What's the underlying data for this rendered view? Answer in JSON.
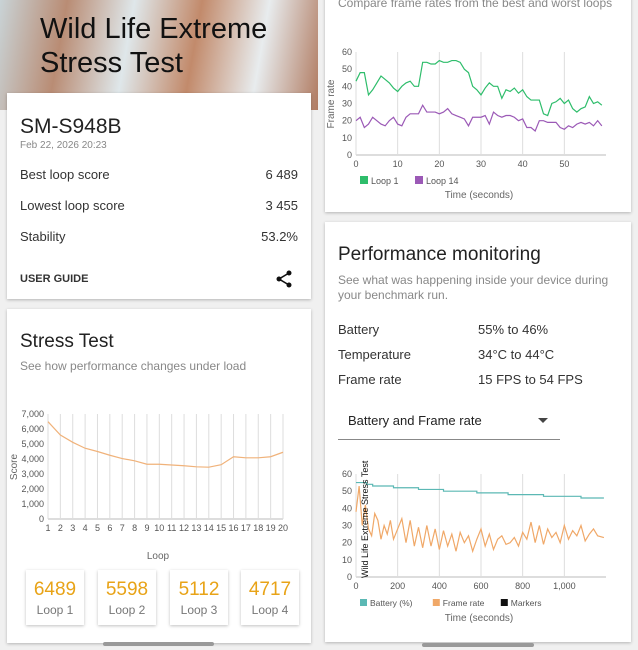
{
  "header": {
    "title": "Wild Life Extreme Stress Test"
  },
  "summary": {
    "device": "SM-S948B",
    "date": "Feb 22, 2026 20:23",
    "rows": [
      {
        "label": "Best loop score",
        "value": "6 489"
      },
      {
        "label": "Lowest loop score",
        "value": "3 455"
      },
      {
        "label": "Stability",
        "value": "53.2%"
      }
    ],
    "user_guide": "USER GUIDE",
    "share_icon": "share-icon"
  },
  "stress": {
    "title": "Stress Test",
    "subtitle": "See how performance changes under load",
    "tiles": [
      {
        "value": "6489",
        "label": "Loop 1"
      },
      {
        "value": "5598",
        "label": "Loop 2"
      },
      {
        "value": "5112",
        "label": "Loop 3"
      },
      {
        "value": "4717",
        "label": "Loop 4"
      }
    ]
  },
  "compare": {
    "subtitle": "Compare frame rates from the best and worst loops"
  },
  "perf": {
    "title": "Performance monitoring",
    "subtitle": "See what was happening inside your device during your benchmark run.",
    "rows": [
      {
        "label": "Battery",
        "value": "55% to 46%"
      },
      {
        "label": "Temperature",
        "value": "34°C to 44°C"
      },
      {
        "label": "Frame rate",
        "value": "15 FPS to 54 FPS"
      }
    ],
    "dropdown": "Battery and Frame rate"
  },
  "chart_data": [
    {
      "type": "line",
      "xlabel": "Loop",
      "ylabel": "Score",
      "ylim": [
        0,
        7000
      ],
      "yticks": [
        "0",
        "1,000",
        "2,000",
        "3,000",
        "4,000",
        "5,000",
        "6,000",
        "7,000"
      ],
      "categories": [
        "1",
        "2",
        "3",
        "4",
        "5",
        "6",
        "7",
        "8",
        "9",
        "10",
        "11",
        "12",
        "13",
        "14",
        "15",
        "16",
        "17",
        "18",
        "19",
        "20"
      ],
      "values": [
        6489,
        5598,
        5112,
        4717,
        4500,
        4250,
        4030,
        3880,
        3650,
        3650,
        3600,
        3550,
        3480,
        3455,
        3620,
        4150,
        4080,
        4080,
        4150,
        4450
      ],
      "color": "#f0b27a",
      "grid": "vertical"
    },
    {
      "type": "line",
      "xlabel": "Time (seconds)",
      "ylabel": "Frame rate",
      "ylim": [
        0,
        60
      ],
      "xlim": [
        0,
        60
      ],
      "xticks": [
        "0",
        "10",
        "20",
        "30",
        "40",
        "50"
      ],
      "yticks": [
        "0",
        "10",
        "20",
        "30",
        "40",
        "50",
        "60"
      ],
      "legend": "bottom-left",
      "series": [
        {
          "name": "Loop 1",
          "color": "#2ebd6b",
          "values": [
            43,
            48,
            48,
            35,
            38,
            42,
            46,
            44,
            42,
            39,
            37,
            40,
            42,
            43,
            40,
            40,
            54,
            54,
            53,
            53,
            55,
            54,
            54,
            55,
            55,
            54,
            50,
            48,
            40,
            38,
            35,
            39,
            42,
            40,
            40,
            33,
            38,
            37,
            39,
            36,
            38,
            34,
            32,
            32,
            32,
            24,
            23,
            30,
            31,
            33,
            30,
            32,
            27,
            25,
            27,
            28,
            34,
            30,
            31,
            29
          ]
        },
        {
          "name": "Loop 14",
          "color": "#9b59b6",
          "values": [
            20,
            22,
            16,
            18,
            22,
            20,
            18,
            17,
            20,
            22,
            18,
            17,
            22,
            24,
            24,
            24,
            29,
            25,
            25,
            25,
            24,
            25,
            27,
            24,
            23,
            22,
            21,
            17,
            22,
            22,
            22,
            23,
            18,
            25,
            23,
            22,
            23,
            23,
            22,
            20,
            21,
            16,
            16,
            14,
            20,
            20,
            19,
            19,
            19,
            16,
            15,
            17,
            16,
            18,
            19,
            18,
            19,
            17,
            20,
            17
          ]
        }
      ]
    },
    {
      "type": "line",
      "xlabel": "Time (seconds)",
      "ylim": [
        0,
        60
      ],
      "xlim": [
        0,
        1200
      ],
      "xticks": [
        "0",
        "200",
        "400",
        "600",
        "800",
        "1,000"
      ],
      "yticks": [
        "0",
        "10",
        "20",
        "30",
        "40",
        "50",
        "60"
      ],
      "legend": "bottom-left",
      "annotation": "Wild Life Extreme Stress Test",
      "series": [
        {
          "name": "Battery (%)",
          "color": "#5bb8b4",
          "x": [
            0,
            50,
            80,
            180,
            300,
            420,
            580,
            730,
            900,
            1080,
            1190
          ],
          "values": [
            55,
            54,
            53,
            52,
            51,
            50,
            49,
            48,
            47,
            46,
            46
          ]
        },
        {
          "name": "Frame rate",
          "color": "#f0a868",
          "x": [
            0,
            15,
            30,
            45,
            60,
            75,
            90,
            105,
            120,
            135,
            150,
            165,
            180,
            200,
            220,
            240,
            260,
            280,
            300,
            320,
            340,
            360,
            380,
            400,
            420,
            440,
            460,
            480,
            500,
            520,
            540,
            560,
            580,
            600,
            620,
            640,
            660,
            680,
            700,
            720,
            740,
            760,
            780,
            800,
            820,
            840,
            860,
            880,
            900,
            920,
            940,
            960,
            980,
            1000,
            1020,
            1040,
            1060,
            1080,
            1100,
            1120,
            1140,
            1160,
            1190
          ],
          "values": [
            38,
            53,
            30,
            42,
            28,
            24,
            37,
            33,
            22,
            30,
            25,
            33,
            22,
            28,
            34,
            20,
            33,
            18,
            29,
            17,
            30,
            18,
            28,
            16,
            27,
            18,
            25,
            15,
            26,
            20,
            24,
            15,
            22,
            28,
            18,
            25,
            16,
            22,
            24,
            19,
            20,
            23,
            18,
            26,
            22,
            32,
            20,
            30,
            19,
            28,
            23,
            26,
            20,
            30,
            22,
            27,
            24,
            30,
            21,
            25,
            28,
            24,
            23
          ]
        },
        {
          "name": "Markers",
          "color": "#111111",
          "x": [],
          "values": []
        }
      ]
    }
  ]
}
